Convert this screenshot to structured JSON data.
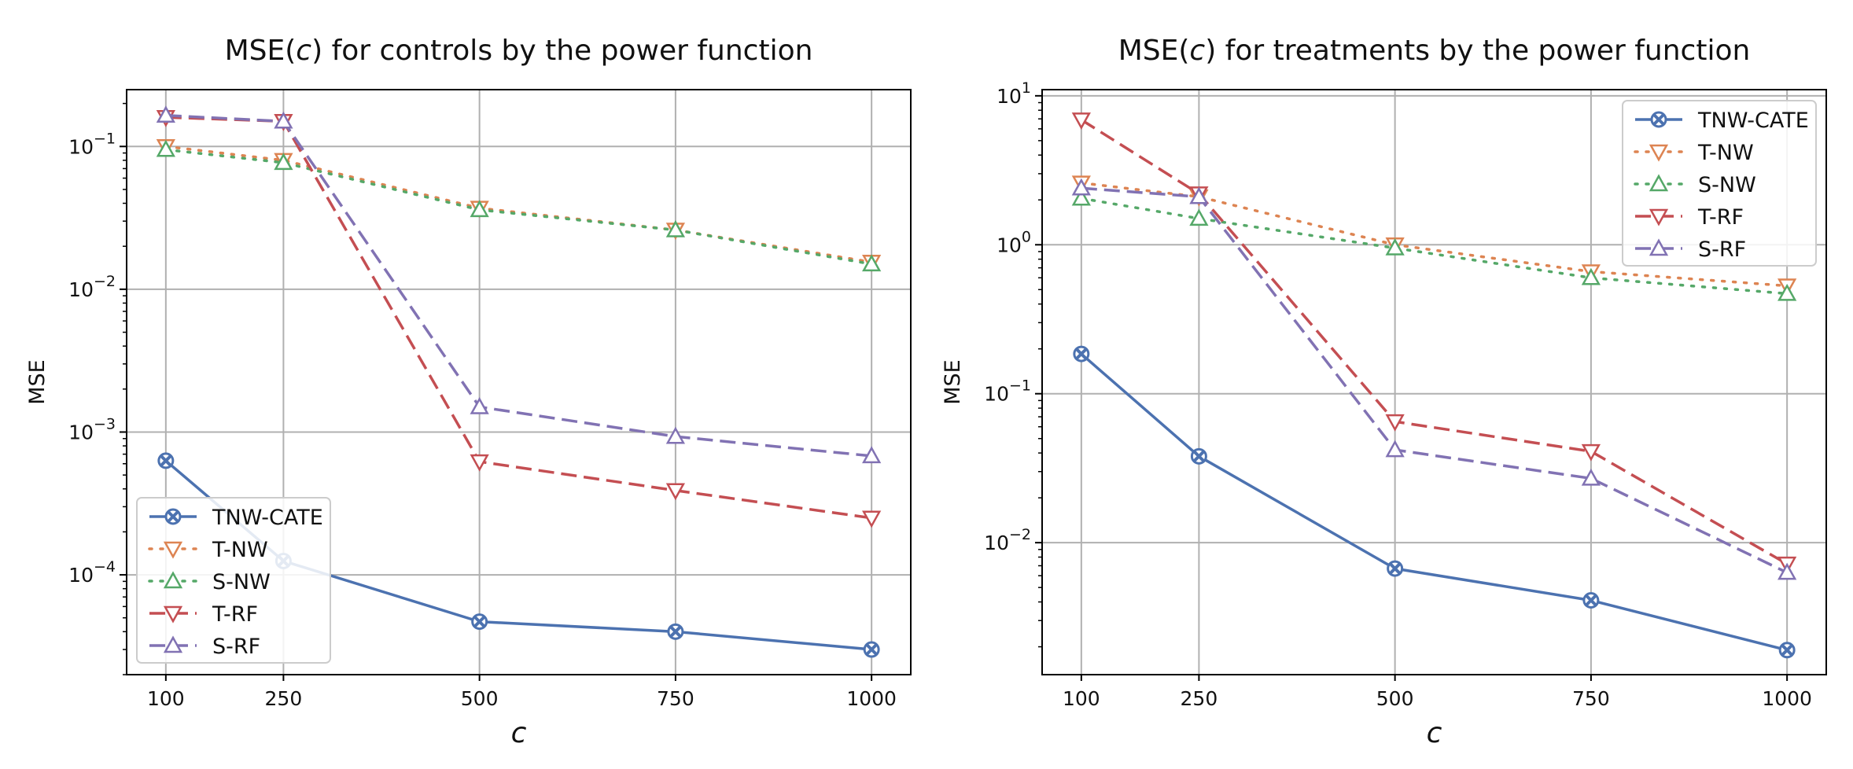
{
  "chart_data": [
    {
      "type": "line",
      "title": "MSE(c) for controls by the power function",
      "title_parts": [
        "MSE(",
        "c",
        ") for controls by the power function"
      ],
      "xlabel": "c",
      "ylabel": "MSE",
      "yscale": "log",
      "x": [
        100,
        250,
        500,
        750,
        1000
      ],
      "xticks": [
        "100",
        "250",
        "500",
        "750",
        "1000"
      ],
      "xlim": [
        50,
        1050
      ],
      "ylim": [
        2e-05,
        0.25
      ],
      "yticks": [
        {
          "value": 0.0001,
          "base": "10",
          "exp": "−4"
        },
        {
          "value": 0.001,
          "base": "10",
          "exp": "−3"
        },
        {
          "value": 0.01,
          "base": "10",
          "exp": "−2"
        },
        {
          "value": 0.1,
          "base": "10",
          "exp": "−1"
        }
      ],
      "legend_position": "lower-left",
      "grid": true,
      "series": [
        {
          "name": "TNW-CATE",
          "color": "#4c72b0",
          "dash": "solid",
          "marker": "x-circle",
          "values": [
            0.00063,
            0.000125,
            4.7e-05,
            4e-05,
            3e-05
          ]
        },
        {
          "name": "T-NW",
          "color": "#dd8452",
          "dash": "dotted",
          "marker": "triangle-down",
          "values": [
            0.1,
            0.08,
            0.037,
            0.026,
            0.0155
          ]
        },
        {
          "name": "S-NW",
          "color": "#55a868",
          "dash": "dotted",
          "marker": "triangle-up",
          "values": [
            0.095,
            0.077,
            0.036,
            0.026,
            0.015
          ]
        },
        {
          "name": "T-RF",
          "color": "#c44e52",
          "dash": "dashed",
          "marker": "triangle-down",
          "values": [
            0.16,
            0.15,
            0.00062,
            0.00039,
            0.00025
          ]
        },
        {
          "name": "S-RF",
          "color": "#8172b3",
          "dash": "dashed",
          "marker": "triangle-up",
          "values": [
            0.165,
            0.15,
            0.0015,
            0.00093,
            0.00068
          ]
        }
      ]
    },
    {
      "type": "line",
      "title": "MSE(c) for treatments by the power function",
      "title_parts": [
        "MSE(",
        "c",
        ") for treatments by the power function"
      ],
      "xlabel": "c",
      "ylabel": "MSE",
      "yscale": "log",
      "x": [
        100,
        250,
        500,
        750,
        1000
      ],
      "xticks": [
        "100",
        "250",
        "500",
        "750",
        "1000"
      ],
      "xlim": [
        50,
        1050
      ],
      "ylim": [
        0.0013,
        11
      ],
      "yticks": [
        {
          "value": 0.01,
          "base": "10",
          "exp": "−2"
        },
        {
          "value": 0.1,
          "base": "10",
          "exp": "−1"
        },
        {
          "value": 1,
          "base": "10",
          "exp": "0"
        },
        {
          "value": 10,
          "base": "10",
          "exp": "1"
        }
      ],
      "legend_position": "upper-right",
      "grid": true,
      "series": [
        {
          "name": "TNW-CATE",
          "color": "#4c72b0",
          "dash": "solid",
          "marker": "x-circle",
          "values": [
            0.185,
            0.038,
            0.0067,
            0.0041,
            0.0019
          ]
        },
        {
          "name": "T-NW",
          "color": "#dd8452",
          "dash": "dotted",
          "marker": "triangle-down",
          "values": [
            2.6,
            2.1,
            1.0,
            0.66,
            0.53
          ]
        },
        {
          "name": "S-NW",
          "color": "#55a868",
          "dash": "dotted",
          "marker": "triangle-up",
          "values": [
            2.05,
            1.5,
            0.95,
            0.6,
            0.47
          ]
        },
        {
          "name": "T-RF",
          "color": "#c44e52",
          "dash": "dashed",
          "marker": "triangle-down",
          "values": [
            6.9,
            2.2,
            0.065,
            0.041,
            0.0072
          ]
        },
        {
          "name": "S-RF",
          "color": "#8172b3",
          "dash": "dashed",
          "marker": "triangle-up",
          "values": [
            2.4,
            2.1,
            0.042,
            0.027,
            0.0063
          ]
        }
      ]
    }
  ]
}
